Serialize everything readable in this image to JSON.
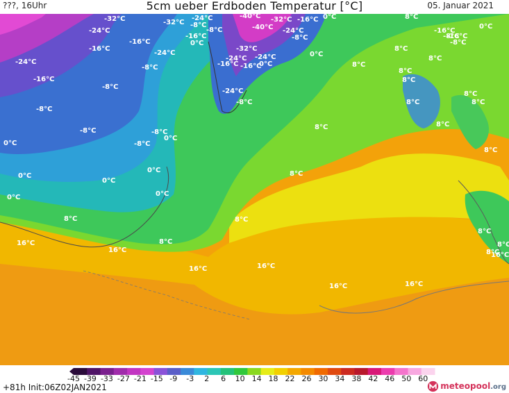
{
  "header": {
    "left": "???, 16Uhr",
    "title": "5cm ueber Erdboden Temperatur [°C]",
    "date": "05. Januar 2021"
  },
  "map": {
    "labels": [
      {
        "text": "-32°C"
      },
      {
        "text": "-24°C"
      },
      {
        "text": "-32°C"
      },
      {
        "text": "-24°C"
      },
      {
        "text": "-40°C"
      },
      {
        "text": "-32°C"
      },
      {
        "text": "-16°C"
      },
      {
        "text": "0°C"
      },
      {
        "text": "-8°C"
      },
      {
        "text": "-8°C"
      },
      {
        "text": "-16°C"
      },
      {
        "text": "-8°C"
      },
      {
        "text": "-40°C"
      },
      {
        "text": "-24°C"
      },
      {
        "text": "-16°C"
      },
      {
        "text": "-24°C"
      },
      {
        "text": "-8°C"
      },
      {
        "text": "0°C"
      },
      {
        "text": "-16°C"
      },
      {
        "text": "-16°C"
      },
      {
        "text": "-24°C"
      },
      {
        "text": "-24°C"
      },
      {
        "text": "-32°C"
      },
      {
        "text": "0°C"
      },
      {
        "text": "8°C"
      },
      {
        "text": "-16°C"
      },
      {
        "text": "-8°C"
      },
      {
        "text": "-24°C"
      },
      {
        "text": "-16°C"
      },
      {
        "text": "0°C"
      },
      {
        "text": "-16°C"
      },
      {
        "text": "-8°C"
      },
      {
        "text": "-24°C"
      },
      {
        "text": "-8°C"
      },
      {
        "text": "8°C"
      },
      {
        "text": "-8°C"
      },
      {
        "text": "-8°C"
      },
      {
        "text": "-8°C"
      },
      {
        "text": "0°C"
      },
      {
        "text": "0°C"
      },
      {
        "text": "-8°C"
      },
      {
        "text": "0°C"
      },
      {
        "text": "0°C"
      },
      {
        "text": "0°C"
      },
      {
        "text": "0°C"
      },
      {
        "text": "0°C"
      },
      {
        "text": "8°C"
      },
      {
        "text": "8°C"
      },
      {
        "text": "8°C"
      },
      {
        "text": "8°C"
      },
      {
        "text": "8°C"
      },
      {
        "text": "8°C"
      },
      {
        "text": "16°C"
      },
      {
        "text": "16°C"
      },
      {
        "text": "16°C"
      },
      {
        "text": "16°C"
      },
      {
        "text": "16°C"
      },
      {
        "text": "16°C"
      },
      {
        "text": "0°C"
      },
      {
        "text": "-16°C"
      },
      {
        "text": "-8°C"
      },
      {
        "text": "8°C"
      },
      {
        "text": "8°C"
      },
      {
        "text": "8°C"
      },
      {
        "text": "8°C"
      },
      {
        "text": "8°C"
      },
      {
        "text": "8°C"
      },
      {
        "text": "8°C"
      },
      {
        "text": "8°C"
      },
      {
        "text": "8°C"
      },
      {
        "text": "8°C"
      },
      {
        "text": "8°C"
      },
      {
        "text": "16°C"
      }
    ]
  },
  "legend": {
    "ticks": [
      "-45",
      "-39",
      "-33",
      "-27",
      "-21",
      "-15",
      "-9",
      "-3",
      "2",
      "6",
      "10",
      "14",
      "18",
      "22",
      "26",
      "30",
      "34",
      "38",
      "42",
      "46",
      "50",
      "60"
    ],
    "colors": [
      "#2a0b3a",
      "#4f1467",
      "#7a1f8e",
      "#a02cab",
      "#c235c2",
      "#d443cf",
      "#8a52d8",
      "#5a5ec8",
      "#3a8ad8",
      "#2fb6e0",
      "#2cc6b6",
      "#24c27a",
      "#30c83c",
      "#8ad820",
      "#e6ec18",
      "#f2d000",
      "#f4a800",
      "#f48a00",
      "#f06a00",
      "#e04a10",
      "#cc2a20",
      "#b8182c",
      "#d81878",
      "#ec3cae",
      "#f474cc",
      "#f8a8e0",
      "#fbd4ee"
    ],
    "run_info": "+81h Init:06Z02JAN2021",
    "brand_a": "meteo",
    "brand_b": "pool",
    "brand_c": ".org"
  }
}
